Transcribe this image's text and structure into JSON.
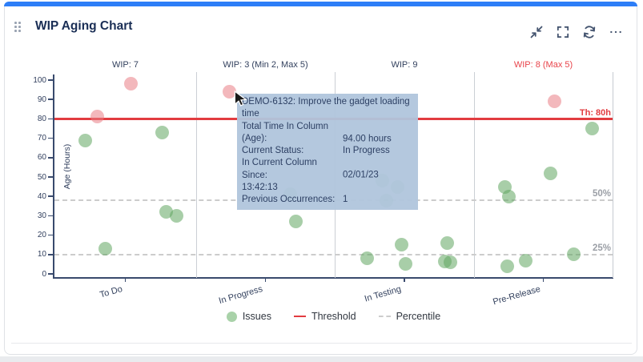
{
  "card": {
    "title": "WIP Aging Chart",
    "accent_color": "#2d7ef7"
  },
  "toolbar": {
    "icons": [
      "collapse-icon",
      "fullscreen-icon",
      "refresh-icon",
      "more-icon"
    ]
  },
  "chart_data": {
    "type": "scatter",
    "title": "WIP Aging Chart",
    "ylabel": "Age (Hours)",
    "ylim": [
      0,
      100
    ],
    "yticks": [
      0,
      10,
      20,
      30,
      40,
      50,
      60,
      70,
      80,
      90,
      100
    ],
    "threshold": {
      "value": 80,
      "label": "Th: 80h",
      "color": "#e23c40"
    },
    "percentiles": [
      {
        "label": "50%",
        "value": 38
      },
      {
        "label": "25%",
        "value": 10
      }
    ],
    "colors": {
      "issue_ok": "rgba(97,166,97,0.55)",
      "issue_over": "rgba(233,125,133,0.55)",
      "wip_exceeded": "#e8434a",
      "axis": "#394a6d"
    },
    "columns": [
      {
        "name": "To Do",
        "wip_label": "WIP: 7",
        "wip_exceeded": false,
        "points": [
          {
            "x": 0.54,
            "age": 98,
            "over": true
          },
          {
            "x": 0.3,
            "age": 81,
            "over": true
          },
          {
            "x": 0.22,
            "age": 69,
            "over": false
          },
          {
            "x": 0.76,
            "age": 73,
            "over": false
          },
          {
            "x": 0.79,
            "age": 32,
            "over": false
          },
          {
            "x": 0.86,
            "age": 30,
            "over": false
          },
          {
            "x": 0.36,
            "age": 13,
            "over": false
          }
        ]
      },
      {
        "name": "In Progress",
        "wip_label": "WIP: 3 (Min 2, Max 5)",
        "wip_exceeded": false,
        "points": [
          {
            "x": 0.24,
            "age": 94,
            "over": true
          },
          {
            "x": 0.68,
            "age": 41,
            "over": false
          },
          {
            "x": 0.72,
            "age": 27,
            "over": false
          }
        ]
      },
      {
        "name": "In Testing",
        "wip_label": "WIP: 9",
        "wip_exceeded": false,
        "points": [
          {
            "x": 0.34,
            "age": 48,
            "over": false
          },
          {
            "x": 0.45,
            "age": 45,
            "over": false
          },
          {
            "x": 0.37,
            "age": 38,
            "over": false
          },
          {
            "x": 0.48,
            "age": 15,
            "over": false
          },
          {
            "x": 0.23,
            "age": 8,
            "over": false
          },
          {
            "x": 0.51,
            "age": 5,
            "over": false
          },
          {
            "x": 0.81,
            "age": 16,
            "over": false
          },
          {
            "x": 0.79,
            "age": 6.5,
            "over": false
          },
          {
            "x": 0.83,
            "age": 6,
            "over": false
          }
        ]
      },
      {
        "name": "Pre-Release",
        "wip_label": "WIP: 8 (Max 5)",
        "wip_exceeded": true,
        "points": [
          {
            "x": 0.58,
            "age": 89,
            "over": true
          },
          {
            "x": 0.85,
            "age": 75,
            "over": false
          },
          {
            "x": 0.55,
            "age": 52,
            "over": false
          },
          {
            "x": 0.22,
            "age": 45,
            "over": false
          },
          {
            "x": 0.25,
            "age": 40,
            "over": false
          },
          {
            "x": 0.72,
            "age": 10,
            "over": false
          },
          {
            "x": 0.37,
            "age": 7,
            "over": false
          },
          {
            "x": 0.24,
            "age": 4,
            "over": false
          }
        ]
      }
    ],
    "legend": [
      {
        "label": "Issues",
        "swatch": "dot"
      },
      {
        "label": "Threshold",
        "swatch": "line"
      },
      {
        "label": "Percentile",
        "swatch": "dashed"
      }
    ]
  },
  "tooltip": {
    "title": "DEMO-6132: Improve the gadget loading time",
    "rows": [
      {
        "label": "Total Time In Column (Age):",
        "value": "94.00 hours"
      },
      {
        "label": "Current Status:",
        "value": "In Progress"
      },
      {
        "label": "In Current Column Since:",
        "value": "02/01/23 13:42:13"
      },
      {
        "label": "Previous Occurrences:",
        "value": "1"
      }
    ]
  }
}
